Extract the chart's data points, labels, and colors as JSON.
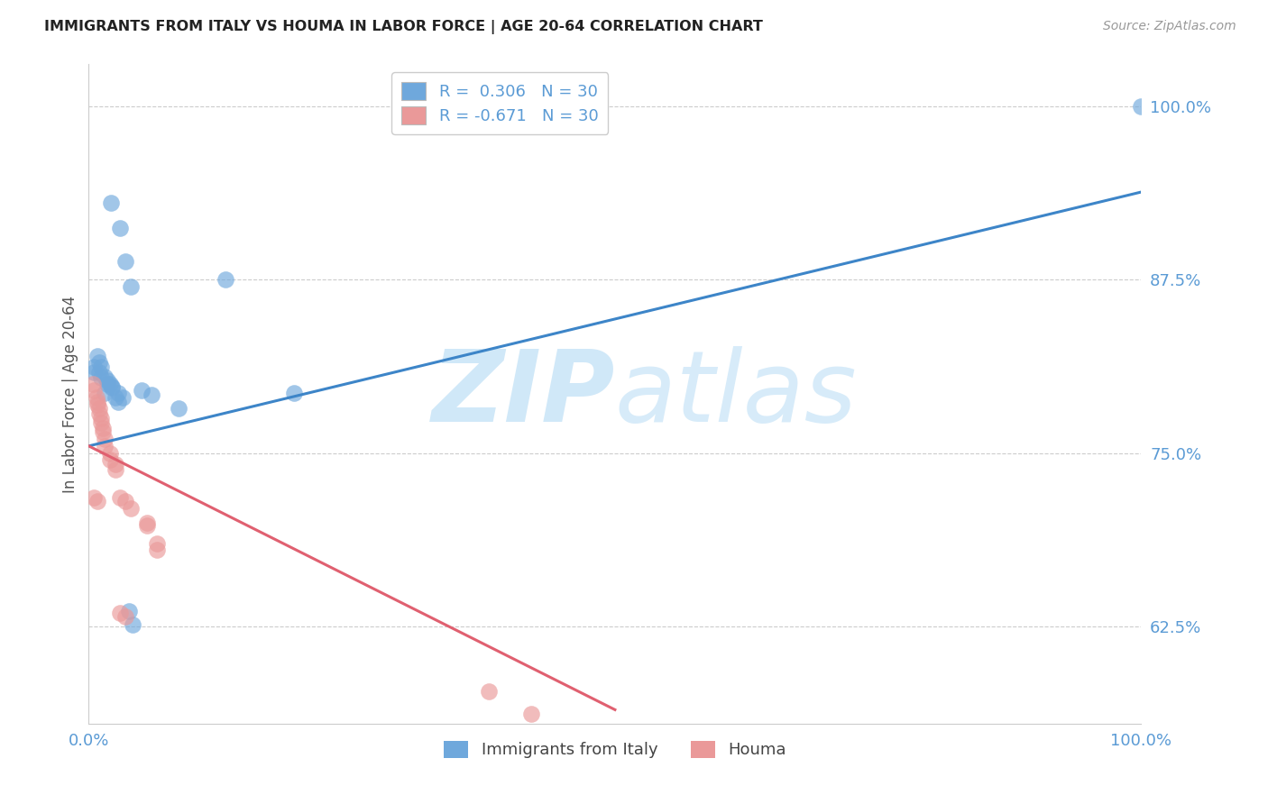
{
  "title": "IMMIGRANTS FROM ITALY VS HOUMA IN LABOR FORCE | AGE 20-64 CORRELATION CHART",
  "source": "Source: ZipAtlas.com",
  "ylabel": "In Labor Force | Age 20-64",
  "xlim": [
    0.0,
    1.0
  ],
  "ylim": [
    0.555,
    1.03
  ],
  "yticks": [
    0.625,
    0.75,
    0.875,
    1.0
  ],
  "ytick_labels": [
    "62.5%",
    "75.0%",
    "87.5%",
    "100.0%"
  ],
  "legend_blue_text": "R =  0.306   N = 30",
  "legend_pink_text": "R = -0.671   N = 30",
  "blue_color": "#6fa8dc",
  "pink_color": "#ea9999",
  "blue_line_color": "#3d85c8",
  "pink_line_color": "#e06070",
  "blue_line": [
    [
      0.0,
      0.755
    ],
    [
      1.0,
      0.938
    ]
  ],
  "pink_line": [
    [
      0.0,
      0.755
    ],
    [
      0.5,
      0.565
    ]
  ],
  "background_color": "#ffffff",
  "grid_color": "#cccccc",
  "title_color": "#222222",
  "source_color": "#999999",
  "tick_label_color": "#5b9bd5",
  "ylabel_color": "#555555",
  "watermark_color": "#d0e8f8",
  "blue_scatter_x": [
    0.021,
    0.03,
    0.035,
    0.13,
    0.008,
    0.01,
    0.012,
    0.01,
    0.015,
    0.018,
    0.02,
    0.022,
    0.015,
    0.025,
    0.028,
    0.05,
    0.06,
    0.085,
    0.195,
    0.038,
    0.042,
    1.0,
    0.005,
    0.005,
    0.012,
    0.018,
    0.022,
    0.028,
    0.032,
    0.04
  ],
  "blue_scatter_y": [
    0.93,
    0.912,
    0.888,
    0.875,
    0.82,
    0.815,
    0.812,
    0.808,
    0.805,
    0.802,
    0.8,
    0.797,
    0.793,
    0.79,
    0.787,
    0.795,
    0.792,
    0.782,
    0.793,
    0.636,
    0.626,
    1.0,
    0.812,
    0.808,
    0.804,
    0.8,
    0.798,
    0.793,
    0.79,
    0.87
  ],
  "pink_scatter_x": [
    0.004,
    0.005,
    0.007,
    0.008,
    0.01,
    0.01,
    0.012,
    0.013,
    0.015,
    0.02,
    0.025,
    0.03,
    0.035,
    0.04,
    0.055,
    0.065,
    0.013,
    0.015,
    0.02,
    0.025,
    0.03,
    0.055,
    0.065,
    0.008,
    0.008,
    0.012,
    0.035,
    0.38,
    0.42,
    0.005
  ],
  "pink_scatter_y": [
    0.8,
    0.795,
    0.79,
    0.787,
    0.782,
    0.778,
    0.775,
    0.768,
    0.76,
    0.75,
    0.742,
    0.718,
    0.715,
    0.71,
    0.7,
    0.685,
    0.765,
    0.755,
    0.745,
    0.738,
    0.635,
    0.698,
    0.68,
    0.785,
    0.715,
    0.772,
    0.632,
    0.578,
    0.562,
    0.718
  ]
}
